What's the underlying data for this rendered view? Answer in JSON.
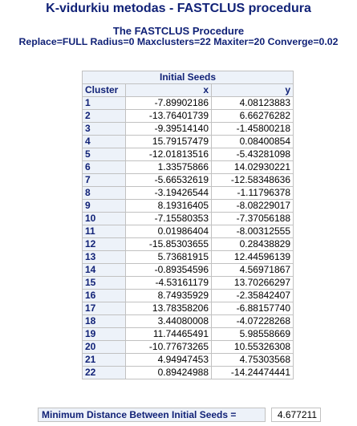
{
  "header": {
    "title": "K-vidurkiu metodas - FASTCLUS procedura",
    "subtitle": "The FASTCLUS Procedure",
    "options": "Replace=FULL   Radius=0   Maxclusters=22 Maxiter=20   Converge=0.02"
  },
  "table": {
    "caption": "Initial Seeds",
    "columns": [
      "Cluster",
      "x",
      "y"
    ],
    "rows": [
      {
        "cluster": "1",
        "x": "-7.89902186",
        "y": "4.08123883"
      },
      {
        "cluster": "2",
        "x": "-13.76401739",
        "y": "6.66276282"
      },
      {
        "cluster": "3",
        "x": "-9.39514140",
        "y": "-1.45800218"
      },
      {
        "cluster": "4",
        "x": "15.79157479",
        "y": "0.08400854"
      },
      {
        "cluster": "5",
        "x": "-12.01813516",
        "y": "-5.43281098"
      },
      {
        "cluster": "6",
        "x": "1.33575866",
        "y": "14.02930221"
      },
      {
        "cluster": "7",
        "x": "-5.66532619",
        "y": "-12.58348636"
      },
      {
        "cluster": "8",
        "x": "-3.19426544",
        "y": "-1.11796378"
      },
      {
        "cluster": "9",
        "x": "8.19316405",
        "y": "-8.08229017"
      },
      {
        "cluster": "10",
        "x": "-7.15580353",
        "y": "-7.37056188"
      },
      {
        "cluster": "11",
        "x": "0.01986404",
        "y": "-8.00312555"
      },
      {
        "cluster": "12",
        "x": "-15.85303655",
        "y": "0.28438829"
      },
      {
        "cluster": "13",
        "x": "5.73681915",
        "y": "12.44596139"
      },
      {
        "cluster": "14",
        "x": "-0.89354596",
        "y": "4.56971867"
      },
      {
        "cluster": "15",
        "x": "-4.53161179",
        "y": "13.70266297"
      },
      {
        "cluster": "16",
        "x": "8.74935929",
        "y": "-2.35842407"
      },
      {
        "cluster": "17",
        "x": "13.78358206",
        "y": "-6.88157740"
      },
      {
        "cluster": "18",
        "x": "3.44080008",
        "y": "-4.07228268"
      },
      {
        "cluster": "19",
        "x": "11.74465491",
        "y": "5.98558669"
      },
      {
        "cluster": "20",
        "x": "-10.77673265",
        "y": "10.55326308"
      },
      {
        "cluster": "21",
        "x": "4.94947453",
        "y": "4.75303568"
      },
      {
        "cluster": "22",
        "x": "0.89424988",
        "y": "-14.24474441"
      }
    ]
  },
  "min_distance": {
    "label": "Minimum Distance Between Initial Seeds =",
    "value": "4.677211"
  }
}
